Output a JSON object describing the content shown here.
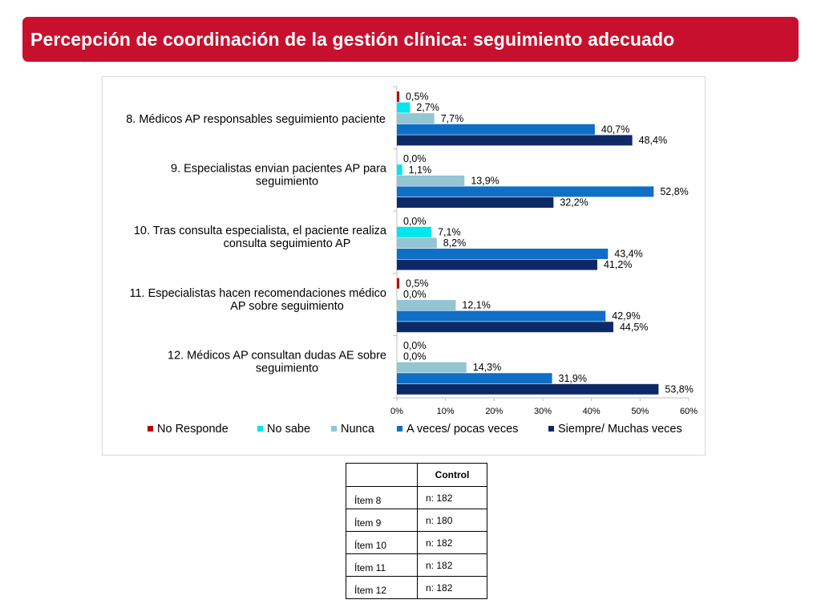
{
  "header": {
    "title": "Percepción de coordinación de la gestión clínica: seguimiento adecuado",
    "accent_color": "#c8102e"
  },
  "chart_data": {
    "type": "bar",
    "orientation": "horizontal",
    "categories": [
      [
        "8. Médicos AP responsables seguimiento paciente"
      ],
      [
        "9. Especialistas envian pacientes AP para",
        "seguimiento"
      ],
      [
        "10. Tras consulta especialista, el paciente realiza",
        "consulta seguimiento  AP"
      ],
      [
        "11. Especialistas hacen recomendaciones médico",
        "AP sobre seguimiento"
      ],
      [
        "12. Médicos AP consultan dudas AE   sobre",
        "seguimiento"
      ]
    ],
    "series": [
      {
        "name": "No Responde",
        "color": "#c00000",
        "values": [
          0.5,
          0.0,
          0.0,
          0.5,
          0.0
        ],
        "labels": [
          "0,5%",
          "0,0%",
          "0,0%",
          "0,5%",
          "0,0%"
        ]
      },
      {
        "name": "No sabe",
        "color": "#00e5ee",
        "values": [
          2.7,
          1.1,
          7.1,
          0.0,
          0.0
        ],
        "labels": [
          "2,7%",
          "1,1%",
          "7,1%",
          "0,0%",
          "0,0%"
        ]
      },
      {
        "name": "Nunca",
        "color": "#93c5d3",
        "values": [
          7.7,
          13.9,
          8.2,
          12.1,
          14.3
        ],
        "labels": [
          "7,7%",
          "13,9%",
          "8,2%",
          "12,1%",
          "14,3%"
        ]
      },
      {
        "name": "A veces/ pocas veces",
        "color": "#0f6fc6",
        "values": [
          40.7,
          52.8,
          43.4,
          42.9,
          31.9
        ],
        "labels": [
          "40,7%",
          "52,8%",
          "43,4%",
          "42,9%",
          "31,9%"
        ]
      },
      {
        "name": "Siempre/ Muchas veces",
        "color": "#0d2a66",
        "values": [
          48.4,
          32.2,
          41.2,
          44.5,
          53.8
        ],
        "labels": [
          "48,4%",
          "32,2%",
          "41,2%",
          "44,5%",
          "53,8%"
        ]
      }
    ],
    "xlim": [
      0,
      60
    ],
    "ticks": [
      "0%",
      "10%",
      "20%",
      "30%",
      "40%",
      "50%",
      "60%"
    ],
    "grid": false,
    "legend": "bottom"
  },
  "table": {
    "header": [
      "",
      "Control"
    ],
    "rows": [
      [
        "Ítem 8",
        "n: 182"
      ],
      [
        "Ítem 9",
        "n: 180"
      ],
      [
        "Ítem 10",
        "n: 182"
      ],
      [
        "Ítem 11",
        "n: 182"
      ],
      [
        "Ítem 12",
        "n: 182"
      ]
    ]
  }
}
